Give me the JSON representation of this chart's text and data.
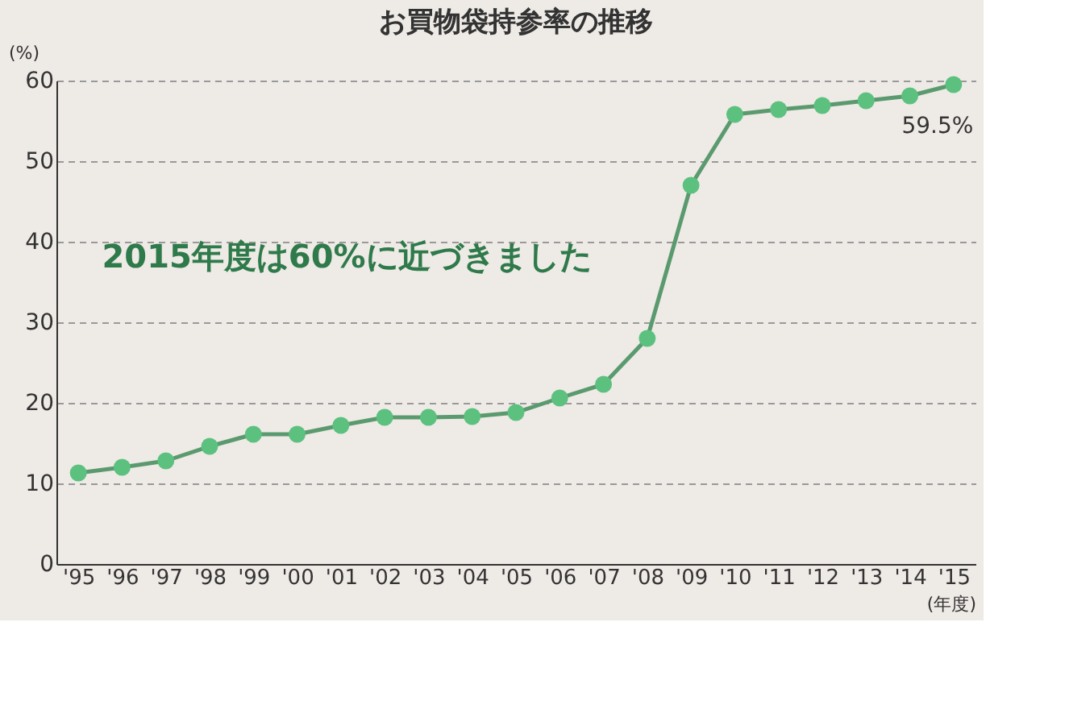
{
  "chart_data": {
    "type": "line",
    "title": "お買物袋持参率の推移",
    "ylabel": "(%)",
    "xlabel": "(年度)",
    "categories": [
      "'95",
      "'96",
      "'97",
      "'98",
      "'99",
      "'00",
      "'01",
      "'02",
      "'03",
      "'04",
      "'05",
      "'06",
      "'07",
      "'08",
      "'09",
      "'10",
      "'11",
      "'12",
      "'13",
      "'14",
      "'15"
    ],
    "series": [
      {
        "color": "#5a9a6e",
        "values": [
          11.3,
          12.0,
          12.8,
          14.6,
          16.1,
          16.1,
          17.2,
          18.2,
          18.2,
          18.3,
          18.8,
          20.6,
          22.3,
          28.0,
          47.0,
          55.8,
          56.4,
          56.9,
          57.5,
          58.1,
          59.5
        ],
        "value_labels": [
          null,
          null,
          null,
          null,
          null,
          null,
          null,
          null,
          null,
          null,
          null,
          null,
          null,
          null,
          null,
          null,
          null,
          null,
          null,
          null,
          "59.5%"
        ]
      }
    ],
    "ylim": [
      0,
      60
    ],
    "yticks": [
      0,
      10,
      20,
      30,
      40,
      50,
      60
    ],
    "grid": "y",
    "marker": "circle",
    "line_style": "solid",
    "annotations": [
      "2015年度は60%に近づきました"
    ]
  }
}
